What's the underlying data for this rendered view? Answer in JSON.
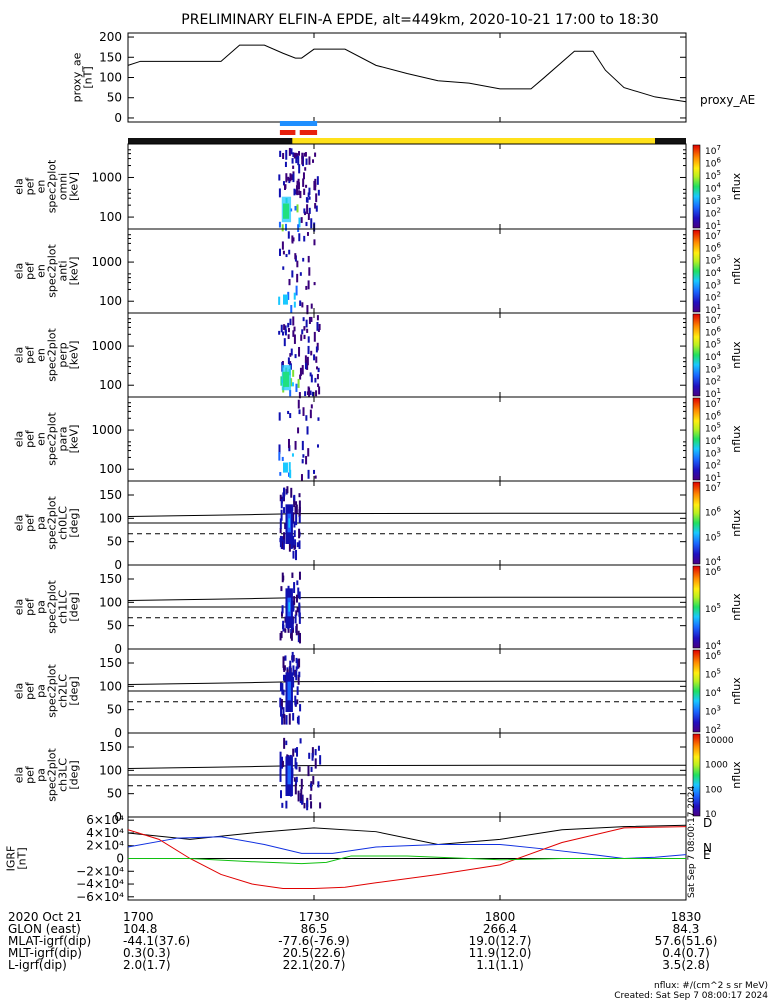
{
  "title": "PRELIMINARY ELFIN-A EPDE, alt=449km, 2020-10-21 17:00 to 18:30",
  "colors": {
    "bar_dark": "#111111",
    "bar_yellow": "#ffe11a",
    "bar_blue": "#1f8fff",
    "bar_red": "#e8200c",
    "trace_black": "#000000",
    "trace_blue": "#1030e0",
    "trace_red": "#e00000",
    "trace_green": "#10c010"
  },
  "chart_data": [
    {
      "type": "line",
      "name": "proxy_ae",
      "ylabel": [
        "proxy_ae",
        "[nT]"
      ],
      "legend": "proxy_AE",
      "ylim": [
        -10,
        210
      ],
      "yticks": [
        "200",
        "150",
        "100",
        "50",
        "0"
      ],
      "ytick_values": [
        200,
        150,
        100,
        50,
        0
      ],
      "x_minutes": [
        0,
        2,
        8,
        15,
        18,
        20,
        22,
        25,
        27,
        28,
        30,
        35,
        40,
        45,
        50,
        55,
        60,
        63,
        65,
        67,
        72,
        75,
        77,
        80,
        85,
        90
      ],
      "values": [
        130,
        140,
        140,
        140,
        180,
        180,
        180,
        160,
        148,
        148,
        170,
        170,
        130,
        110,
        92,
        86,
        72,
        72,
        72,
        98,
        165,
        165,
        118,
        75,
        52,
        40
      ]
    },
    {
      "type": "heatmap",
      "name": "spec2plot omni",
      "ylabel": [
        "ela",
        "pef",
        "en",
        "spec2plot",
        "omni",
        "[keV]"
      ],
      "yscale": "log",
      "ylim": [
        50,
        7000
      ],
      "yticks": [
        "1000",
        "100"
      ],
      "ytick_values": [
        1000,
        100
      ],
      "colorbar_ticks": [
        "10",
        "10",
        "10",
        "10",
        "10",
        "10",
        "10"
      ],
      "colorbar_exponents": [
        "7",
        "6",
        "5",
        "4",
        "3",
        "2",
        "1"
      ],
      "colorbar_label": "nflux"
    },
    {
      "type": "heatmap",
      "name": "spec2plot anti",
      "ylabel": [
        "ela",
        "pef",
        "en",
        "spec2plot",
        "anti",
        "[keV]"
      ],
      "yscale": "log",
      "ylim": [
        50,
        7000
      ],
      "yticks": [
        "1000",
        "100"
      ],
      "ytick_values": [
        1000,
        100
      ],
      "colorbar_ticks": [
        "10",
        "10",
        "10",
        "10",
        "10",
        "10",
        "10"
      ],
      "colorbar_exponents": [
        "7",
        "6",
        "5",
        "4",
        "3",
        "2",
        "1"
      ],
      "colorbar_label": "nflux"
    },
    {
      "type": "heatmap",
      "name": "spec2plot perp",
      "ylabel": [
        "ela",
        "pef",
        "en",
        "spec2plot",
        "perp",
        "[keV]"
      ],
      "yscale": "log",
      "ylim": [
        50,
        7000
      ],
      "yticks": [
        "1000",
        "100"
      ],
      "ytick_values": [
        1000,
        100
      ],
      "colorbar_ticks": [
        "10",
        "10",
        "10",
        "10",
        "10",
        "10",
        "10"
      ],
      "colorbar_exponents": [
        "7",
        "6",
        "5",
        "4",
        "3",
        "2",
        "1"
      ],
      "colorbar_label": "nflux"
    },
    {
      "type": "heatmap",
      "name": "spec2plot para",
      "ylabel": [
        "ela",
        "pef",
        "en",
        "spec2plot",
        "para",
        "[keV]"
      ],
      "yscale": "log",
      "ylim": [
        50,
        7000
      ],
      "yticks": [
        "1000",
        "100"
      ],
      "ytick_values": [
        1000,
        100
      ],
      "colorbar_ticks": [
        "10",
        "10",
        "10",
        "10",
        "10",
        "10",
        "10"
      ],
      "colorbar_exponents": [
        "7",
        "6",
        "5",
        "4",
        "3",
        "2",
        "1"
      ],
      "colorbar_label": "nflux"
    },
    {
      "type": "heatmap",
      "name": "spec2plot ch0LC",
      "ylabel": [
        "ela",
        "pef",
        "pa",
        "spec2plot",
        "ch0LC",
        "[deg]"
      ],
      "ylim": [
        0,
        180
      ],
      "yticks": [
        "150",
        "100",
        "50",
        "0"
      ],
      "ytick_values": [
        150,
        100,
        50,
        0
      ],
      "lines_deg": [
        112,
        90,
        67
      ],
      "colorbar_ticks": [
        "10",
        "10",
        "10",
        "10"
      ],
      "colorbar_exponents": [
        "7",
        "6",
        "5",
        "4"
      ],
      "colorbar_label": "nflux"
    },
    {
      "type": "heatmap",
      "name": "spec2plot ch1LC",
      "ylabel": [
        "ela",
        "pef",
        "pa",
        "spec2plot",
        "ch1LC",
        "[deg]"
      ],
      "ylim": [
        0,
        180
      ],
      "yticks": [
        "150",
        "100",
        "50",
        "0"
      ],
      "ytick_values": [
        150,
        100,
        50,
        0
      ],
      "lines_deg": [
        112,
        90,
        67
      ],
      "colorbar_ticks": [
        "10",
        "10",
        "10"
      ],
      "colorbar_exponents": [
        "6",
        "5",
        "4"
      ],
      "colorbar_label": "nflux"
    },
    {
      "type": "heatmap",
      "name": "spec2plot ch2LC",
      "ylabel": [
        "ela",
        "pef",
        "pa",
        "spec2plot",
        "ch2LC",
        "[deg]"
      ],
      "ylim": [
        0,
        180
      ],
      "yticks": [
        "150",
        "100",
        "50",
        "0"
      ],
      "ytick_values": [
        150,
        100,
        50,
        0
      ],
      "lines_deg": [
        112,
        90,
        67
      ],
      "colorbar_ticks": [
        "10",
        "10",
        "10",
        "10",
        "10"
      ],
      "colorbar_exponents": [
        "6",
        "5",
        "4",
        "3",
        "2"
      ],
      "colorbar_label": "nflux"
    },
    {
      "type": "heatmap",
      "name": "spec2plot ch3LC",
      "ylabel": [
        "ela",
        "pef",
        "pa",
        "spec2plot",
        "ch3LC",
        "[deg]"
      ],
      "ylim": [
        0,
        180
      ],
      "yticks": [
        "150",
        "100",
        "50",
        "0"
      ],
      "ytick_values": [
        150,
        100,
        50,
        0
      ],
      "lines_deg": [
        112,
        90,
        67
      ],
      "colorbar_ticks": [
        "10000",
        "1000",
        "100",
        "10"
      ],
      "colorbar_label": "nflux"
    },
    {
      "type": "line",
      "name": "IGRF",
      "ylabel": [
        "IGRF",
        "[nT]"
      ],
      "ylim": [
        -65000,
        65000
      ],
      "yticks": [
        "6×10⁴",
        "4×10⁴",
        "2×10⁴",
        "0",
        "−2×10⁴",
        "−4×10⁴",
        "−6×10⁴"
      ],
      "ytick_values": [
        60000,
        40000,
        20000,
        0,
        -20000,
        -40000,
        -60000
      ],
      "series": [
        {
          "name": "D",
          "color": "black",
          "x_minutes": [
            0,
            10,
            20,
            30,
            40,
            50,
            60,
            70,
            80,
            90
          ],
          "values": [
            40000,
            30000,
            40000,
            48000,
            42000,
            22000,
            30000,
            45000,
            50000,
            52000
          ]
        },
        {
          "name": "N",
          "color": "blue",
          "x_minutes": [
            0,
            8,
            15,
            22,
            28,
            33,
            40,
            50,
            60,
            68,
            75,
            80,
            85,
            90
          ],
          "values": [
            18000,
            32000,
            34000,
            22000,
            8000,
            8000,
            18000,
            22000,
            22000,
            14000,
            6000,
            0,
            2000,
            6000
          ]
        },
        {
          "name": "",
          "color": "red",
          "x_minutes": [
            0,
            5,
            10,
            15,
            20,
            25,
            30,
            35,
            40,
            50,
            60,
            70,
            80,
            90
          ],
          "values": [
            45000,
            30000,
            0,
            -25000,
            -40000,
            -47000,
            -47000,
            -45000,
            -38000,
            -25000,
            -10000,
            25000,
            48000,
            50000
          ]
        },
        {
          "name": "E",
          "color": "green",
          "x_minutes": [
            0,
            10,
            20,
            28,
            32,
            36,
            45,
            55,
            60,
            70,
            80,
            90
          ],
          "values": [
            0,
            0,
            -5000,
            -8000,
            -6000,
            4000,
            4000,
            0,
            -2000,
            0,
            0,
            0
          ]
        }
      ]
    }
  ],
  "x_axis": {
    "ticks": [
      "1700",
      "1730",
      "1800",
      "1830"
    ],
    "tick_minutes": [
      0,
      30,
      60,
      90
    ]
  },
  "footer_rows": [
    {
      "label": "2020 Oct 21",
      "values": [
        "1700",
        "1730",
        "1800",
        "1830"
      ]
    },
    {
      "label": "GLON (east)",
      "values": [
        "104.8",
        "86.5",
        "266.4",
        "84.3"
      ]
    },
    {
      "label": "MLAT-igrf(dip)",
      "values": [
        "-44.1(37.6)",
        "-77.6(-76.9)",
        "19.0(12.7)",
        "57.6(51.6)"
      ]
    },
    {
      "label": "MLT-igrf(dip)",
      "values": [
        "0.3(0.3)",
        "20.5(22.6)",
        "11.9(12.0)",
        "0.4(0.7)"
      ]
    },
    {
      "label": "L-igrf(dip)",
      "values": [
        "2.0(1.7)",
        "22.1(20.7)",
        "1.1(1.1)",
        "3.5(2.8)"
      ]
    }
  ],
  "units_note": "nflux: #/(cm^2 s sr MeV)",
  "created": "Created: Sat Sep  7 08:00:17 2024",
  "side_stamp": "Sat Sep  7 08:00:17 2024"
}
